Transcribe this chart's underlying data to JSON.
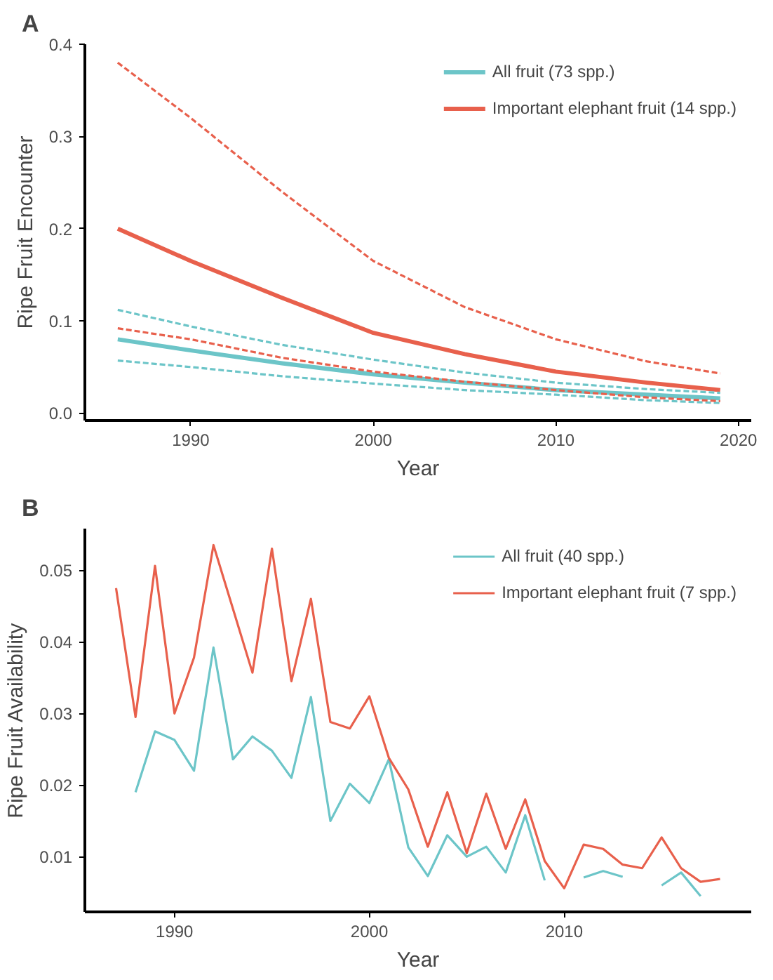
{
  "chart_data": [
    {
      "type": "line",
      "title": "A",
      "xlabel": "Year",
      "ylabel": "Ripe Fruit Encounter",
      "x": [
        1986,
        1990,
        1995,
        2000,
        2005,
        2010,
        2015,
        2019
      ],
      "series": [
        {
          "name": "All fruit (73 spp.)",
          "color": "#6cc5c8",
          "values": [
            0.08,
            0.068,
            0.054,
            0.042,
            0.033,
            0.025,
            0.02,
            0.016
          ]
        },
        {
          "name": "Important elephant fruit (14 spp.)",
          "color": "#e8604c",
          "values": [
            0.2,
            0.165,
            0.125,
            0.087,
            0.064,
            0.045,
            0.033,
            0.025
          ]
        },
        {
          "color": "#6cc5c8",
          "line_style": "dashed",
          "values": [
            0.057,
            0.05,
            0.04,
            0.032,
            0.025,
            0.02,
            0.014,
            0.011
          ]
        },
        {
          "color": "#6cc5c8",
          "line_style": "dashed",
          "values": [
            0.112,
            0.094,
            0.074,
            0.058,
            0.044,
            0.033,
            0.026,
            0.022
          ]
        },
        {
          "color": "#e8604c",
          "line_style": "dashed",
          "values": [
            0.092,
            0.08,
            0.06,
            0.045,
            0.034,
            0.025,
            0.017,
            0.013
          ]
        },
        {
          "color": "#e8604c",
          "line_style": "dashed",
          "values": [
            0.38,
            0.32,
            0.24,
            0.165,
            0.115,
            0.08,
            0.056,
            0.043
          ]
        }
      ],
      "xlim": [
        1984.2,
        2020.7
      ],
      "ylim": [
        -0.008,
        0.4
      ],
      "xticks": [
        1990,
        2000,
        2010,
        2020
      ],
      "yticks": [
        {
          "value": 0,
          "label": "0.0"
        },
        0.1,
        0.2,
        0.3,
        0.4
      ],
      "grid": false,
      "legend": "top right",
      "line_style": "solid",
      "marker": "none"
    },
    {
      "type": "line",
      "title": "B",
      "xlabel": "Year",
      "ylabel": "Ripe Fruit Availability",
      "x": [
        1987,
        1988,
        1989,
        1990,
        1991,
        1992,
        1993,
        1994,
        1995,
        1996,
        1997,
        1998,
        1999,
        2000,
        2001,
        2002,
        2003,
        2004,
        2005,
        2006,
        2007,
        2008,
        2009,
        2010,
        2011,
        2012,
        2013,
        2014,
        2015,
        2016,
        2017,
        2018
      ],
      "series": [
        {
          "name": "All fruit (40 spp.)",
          "color": "#6cc5c8",
          "values": [
            null,
            0.019,
            0.0275,
            0.0263,
            0.022,
            0.0392,
            0.0236,
            0.0268,
            0.0248,
            0.021,
            0.0323,
            0.015,
            0.0202,
            0.0175,
            0.0236,
            0.0113,
            0.0073,
            0.013,
            0.01,
            0.0114,
            0.0078,
            0.0158,
            0.0067,
            null,
            0.0071,
            0.008,
            0.0072,
            null,
            0.006,
            0.0078,
            0.0045,
            null
          ]
        },
        {
          "name": "Important elephant fruit (7 spp.)",
          "color": "#e8604c",
          "values": [
            0.0475,
            0.0295,
            0.0506,
            0.03,
            0.0378,
            0.0535,
            0.0446,
            0.0357,
            0.053,
            0.0345,
            0.046,
            0.0288,
            0.0279,
            0.0324,
            0.0238,
            0.0194,
            0.0114,
            0.019,
            0.0105,
            0.0188,
            0.0111,
            0.018,
            0.0094,
            0.0056,
            0.0117,
            0.0111,
            0.0089,
            0.0084,
            0.0127,
            0.0084,
            0.0065,
            0.0069
          ]
        }
      ],
      "xlim": [
        1985.4,
        2019.6
      ],
      "ylim": [
        0.0023,
        0.0558
      ],
      "xticks": [
        1990,
        2000,
        2010
      ],
      "yticks": [
        0.01,
        0.02,
        0.03,
        0.04,
        0.05
      ],
      "grid": false,
      "legend": "top right",
      "line_style": "solid",
      "marker": "none"
    }
  ]
}
